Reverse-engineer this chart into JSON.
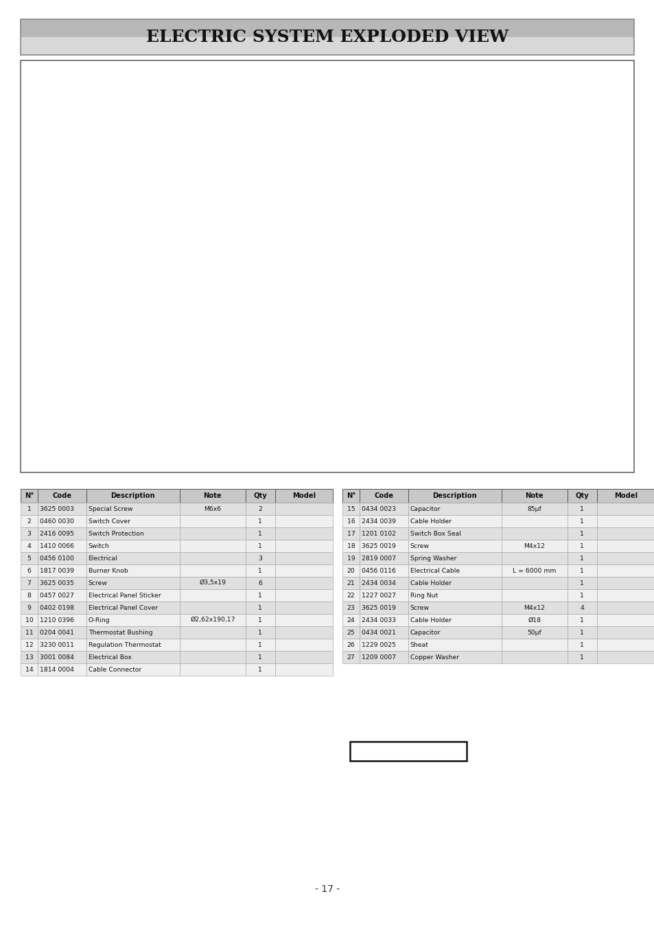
{
  "title": "ELECTRIC SYSTEM EXPLODED VIEW",
  "page_number": "- 17 -",
  "bg_color": "#ffffff",
  "title_bg_top": "#c8c8c8",
  "title_bg_bot": "#e8e8e8",
  "header_bg": "#c8c8c8",
  "row_bg_even": "#e0e0e0",
  "row_bg_odd": "#f0f0f0",
  "table1": {
    "headers": [
      "N°",
      "Code",
      "Description",
      "Note",
      "Qty",
      "Model"
    ],
    "col_props": [
      0.055,
      0.155,
      0.3,
      0.21,
      0.095,
      0.185
    ],
    "rows": [
      [
        "1",
        "3625 0003",
        "Special Screw",
        "M6x6",
        "2",
        ""
      ],
      [
        "2",
        "0460 0030",
        "Switch Cover",
        "",
        "1",
        ""
      ],
      [
        "3",
        "2416 0095",
        "Switch Protection",
        "",
        "1",
        ""
      ],
      [
        "4",
        "1410 0066",
        "Switch",
        "",
        "1",
        ""
      ],
      [
        "5",
        "0456 0100",
        "Electrical",
        "",
        "3",
        ""
      ],
      [
        "6",
        "1817 0039",
        "Burner Knob",
        "",
        "1",
        ""
      ],
      [
        "7",
        "3625 0035",
        "Screw",
        "Ø3,5x19",
        "6",
        ""
      ],
      [
        "8",
        "0457 0027",
        "Electrical Panel Sticker",
        "",
        "1",
        ""
      ],
      [
        "9",
        "0402 0198",
        "Electrical Panel Cover",
        "",
        "1",
        ""
      ],
      [
        "10",
        "1210 0396",
        "O-Ring",
        "Ø2,62x190,17",
        "1",
        ""
      ],
      [
        "11",
        "0204 0041",
        "Thermostat Bushing",
        "",
        "1",
        ""
      ],
      [
        "12",
        "3230 0011",
        "Regulation Thermostat",
        "",
        "1",
        ""
      ],
      [
        "13",
        "3001 0084",
        "Electrical Box",
        "",
        "1",
        ""
      ],
      [
        "14",
        "1814 0004",
        "Cable Connector",
        "",
        "1",
        ""
      ]
    ]
  },
  "table2": {
    "headers": [
      "N°",
      "Code",
      "Description",
      "Note",
      "Qty",
      "Model"
    ],
    "col_props": [
      0.055,
      0.155,
      0.3,
      0.21,
      0.095,
      0.185
    ],
    "rows": [
      [
        "15",
        "0434 0023",
        "Capacitor",
        "85μf",
        "1",
        ""
      ],
      [
        "16",
        "2434 0039",
        "Cable Holder",
        "",
        "1",
        ""
      ],
      [
        "17",
        "1201 0102",
        "Switch Box Seal",
        "",
        "1",
        ""
      ],
      [
        "18",
        "3625 0019",
        "Screw",
        "M4x12",
        "1",
        ""
      ],
      [
        "19",
        "2819 0007",
        "Spring Washer",
        "",
        "1",
        ""
      ],
      [
        "20",
        "0456 0116",
        "Electrical Cable",
        "L = 6000 mm",
        "1",
        ""
      ],
      [
        "21",
        "2434 0034",
        "Cable Holder",
        "",
        "1",
        ""
      ],
      [
        "22",
        "1227 0027",
        "Ring Nut",
        "",
        "1",
        ""
      ],
      [
        "23",
        "3625 0019",
        "Screw",
        "M4x12",
        "4",
        ""
      ],
      [
        "24",
        "2434 0033",
        "Cable Holder",
        "Ø18",
        "1",
        ""
      ],
      [
        "25",
        "0434 0021",
        "Capacitor",
        "50μf",
        "1",
        ""
      ],
      [
        "26",
        "1229 0025",
        "Sheat",
        "",
        "1",
        ""
      ],
      [
        "27",
        "1209 0007",
        "Copper Washer",
        "",
        "1",
        ""
      ]
    ]
  }
}
